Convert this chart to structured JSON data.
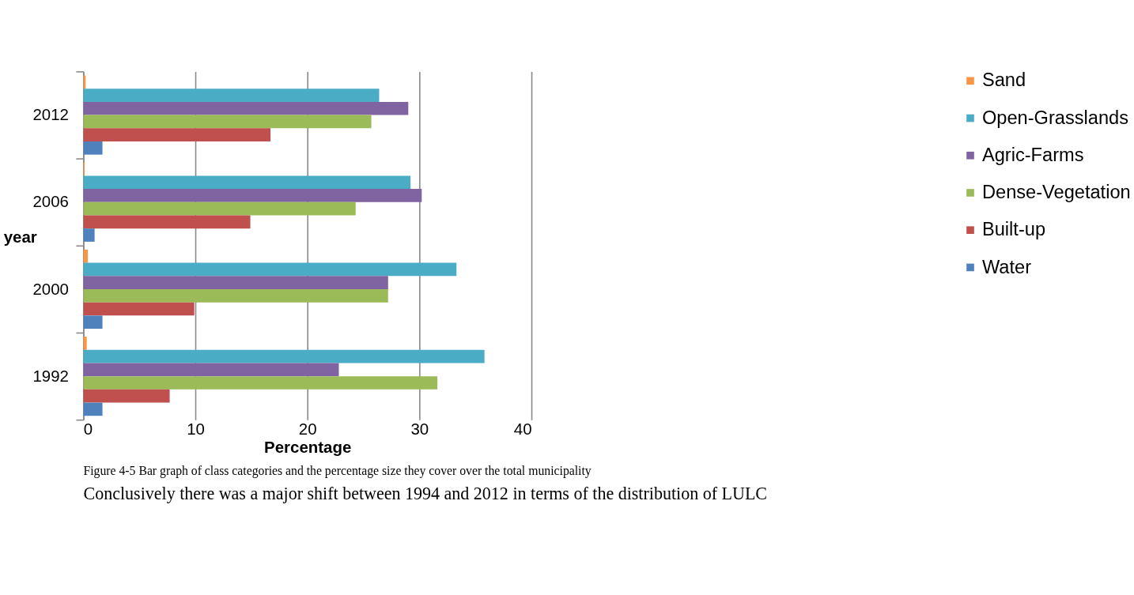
{
  "chart_data": {
    "type": "bar",
    "orientation": "horizontal",
    "categories": [
      "2012",
      "2006",
      "2000",
      "1992"
    ],
    "series": [
      {
        "name": "Sand",
        "color": "#f79646",
        "values": [
          0.2,
          0.1,
          0.4,
          0.3
        ]
      },
      {
        "name": "Open-Grasslands",
        "color": "#4bacc6",
        "values": [
          26.4,
          29.2,
          33.3,
          35.8
        ]
      },
      {
        "name": "Agric-Farms",
        "color": "#8064a2",
        "values": [
          29.0,
          30.2,
          27.2,
          22.8
        ]
      },
      {
        "name": "Dense-Vegetation",
        "color": "#9bbb59",
        "values": [
          25.7,
          24.3,
          27.2,
          31.6
        ]
      },
      {
        "name": "Built-up",
        "color": "#c0504d",
        "values": [
          16.7,
          14.9,
          9.9,
          7.7
        ]
      },
      {
        "name": "Water",
        "color": "#4f81bd",
        "values": [
          1.7,
          1.0,
          1.7,
          1.7
        ]
      }
    ],
    "xlim": [
      0,
      40
    ],
    "xticks": [
      0,
      10,
      20,
      30,
      40
    ],
    "grid": "x",
    "legend": "right",
    "xlabel": "Percentage",
    "ylabel": "year",
    "annotations": [
      "Figure 4-5 Bar graph of class categories and the percentage size they cover over the total municipality",
      "Conclusively there was a major shift between 1994 and 2012 in terms of the distribution of LULC"
    ]
  }
}
